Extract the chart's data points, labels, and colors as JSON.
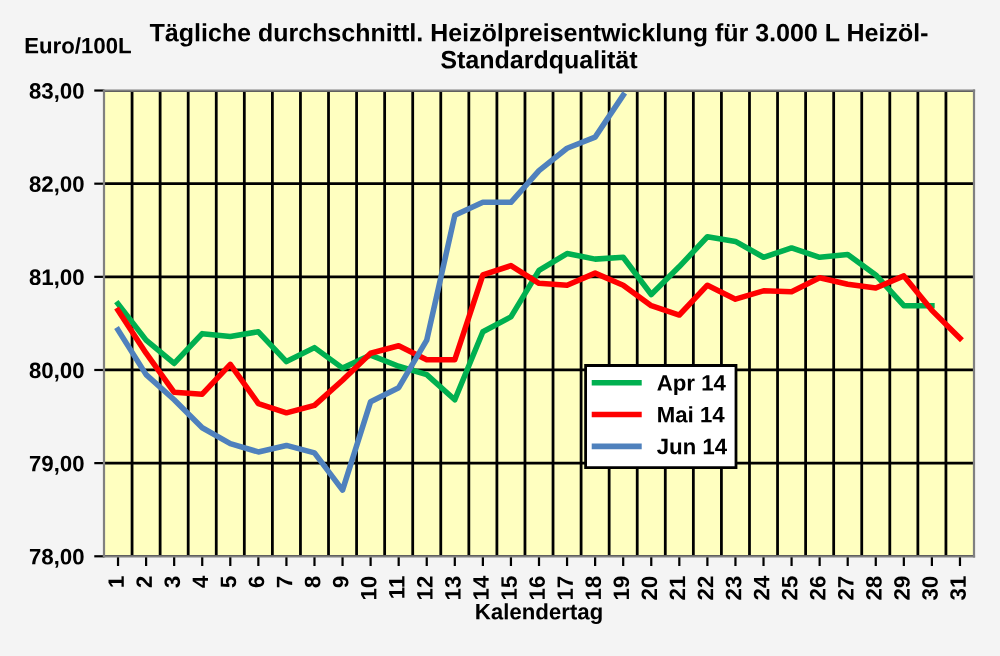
{
  "chart_data": {
    "type": "line",
    "title": "Tägliche durchschnittl. Heizölpreisentwicklung für 3.000 L Heizöl-\nStandardqualität",
    "xlabel": "Kalendertag",
    "ylabel": "Euro/100L",
    "categories": [
      "1",
      "2",
      "3",
      "4",
      "5",
      "6",
      "7",
      "8",
      "9",
      "10",
      "11",
      "12",
      "13",
      "14",
      "15",
      "16",
      "17",
      "18",
      "19",
      "20",
      "21",
      "22",
      "23",
      "24",
      "25",
      "26",
      "27",
      "28",
      "29",
      "30",
      "31"
    ],
    "series": [
      {
        "name": "Apr 14",
        "color": "#00b050",
        "values": [
          80.71,
          80.32,
          80.07,
          80.39,
          80.36,
          80.41,
          80.09,
          80.24,
          80.02,
          80.16,
          80.04,
          79.95,
          79.68,
          80.41,
          80.57,
          81.07,
          81.25,
          81.19,
          81.21,
          80.81,
          81.11,
          81.43,
          81.38,
          81.21,
          81.31,
          81.21,
          81.24,
          81.02,
          80.69,
          80.69,
          null
        ]
      },
      {
        "name": "Mai 14",
        "color": "#ff0000",
        "values": [
          80.64,
          80.18,
          79.76,
          79.74,
          80.06,
          79.64,
          79.54,
          79.62,
          79.89,
          80.18,
          80.26,
          80.11,
          80.11,
          81.02,
          81.12,
          80.93,
          80.91,
          81.04,
          80.91,
          80.69,
          80.59,
          80.91,
          80.76,
          80.85,
          80.84,
          80.99,
          80.92,
          80.88,
          81.01,
          80.64,
          80.34
        ]
      },
      {
        "name": "Jun 14",
        "color": "#4f81bd",
        "values": [
          80.43,
          79.95,
          79.68,
          79.38,
          79.21,
          79.12,
          79.19,
          79.11,
          78.71,
          79.66,
          79.81,
          80.32,
          81.66,
          81.8,
          81.8,
          82.14,
          82.38,
          82.5,
          82.95,
          null,
          null,
          null,
          null,
          null,
          null,
          null,
          null,
          null,
          null,
          null,
          null
        ]
      }
    ],
    "ylim": [
      78,
      83
    ],
    "yticks": [
      {
        "value": 78,
        "label": "78,00"
      },
      {
        "value": 79,
        "label": "79,00"
      },
      {
        "value": 80,
        "label": "80,00"
      },
      {
        "value": 81,
        "label": "81,00"
      },
      {
        "value": 82,
        "label": "82,00"
      },
      {
        "value": 83,
        "label": "83,00"
      }
    ],
    "grid": true,
    "legend": "center right",
    "marker": "none",
    "line_style": "solid"
  }
}
